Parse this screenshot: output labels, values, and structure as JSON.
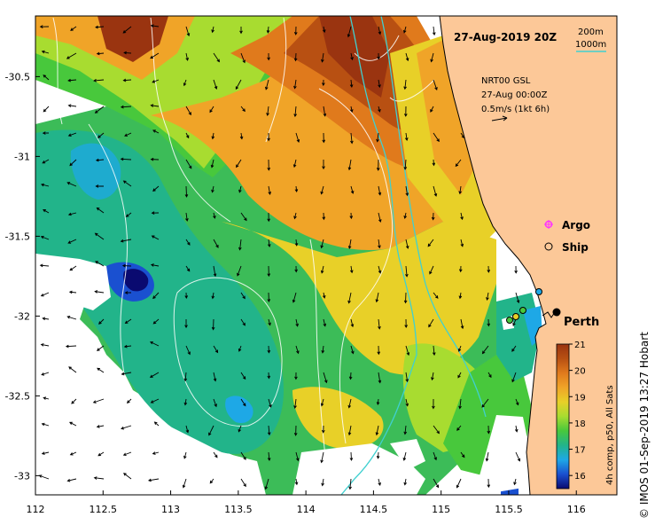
{
  "map": {
    "title": "27-Aug-2019 20Z",
    "extent": {
      "lon": [
        112,
        116.3
      ],
      "lat": [
        -33.12,
        -30.12
      ]
    },
    "x_ticks": [
      "112",
      "112.5",
      "113",
      "113.5",
      "114",
      "114.5",
      "115",
      "115.5",
      "116"
    ],
    "y_ticks": [
      "-30.5",
      "-31",
      "-31.5",
      "-32",
      "-32.5",
      "-33"
    ],
    "colors": {
      "land": "#fcc898",
      "isobath": "#40d0d0",
      "sealevel_contour": "#ffffff",
      "coast": "#000000",
      "argo": "#ff33ff"
    }
  },
  "isobaths": {
    "label_200": "200m",
    "label_1000": "1000m"
  },
  "current_model": {
    "model": "NRT00 GSL",
    "date": "27-Aug 00:00Z",
    "scale": "0.5m/s (1kt 6h)"
  },
  "legend": {
    "argo_label": "Argo",
    "ship_label": "Ship"
  },
  "places": {
    "city": "Perth",
    "city_lon": 115.86,
    "city_lat": -31.95
  },
  "colorbar": {
    "min": 15.5,
    "max": 21,
    "ticks": [
      "16",
      "17",
      "18",
      "19",
      "20",
      "21"
    ],
    "title": "4h comp, p50, All Sats",
    "stops": [
      "#0a0a70",
      "#1a50d0",
      "#1ea8e6",
      "#22b48a",
      "#48c83c",
      "#a8dc30",
      "#e8d028",
      "#f0a428",
      "#e07a1c",
      "#b85012",
      "#9a3410"
    ]
  },
  "credit": "© IMOS 01-Sep-2019 13:27 Hobart"
}
